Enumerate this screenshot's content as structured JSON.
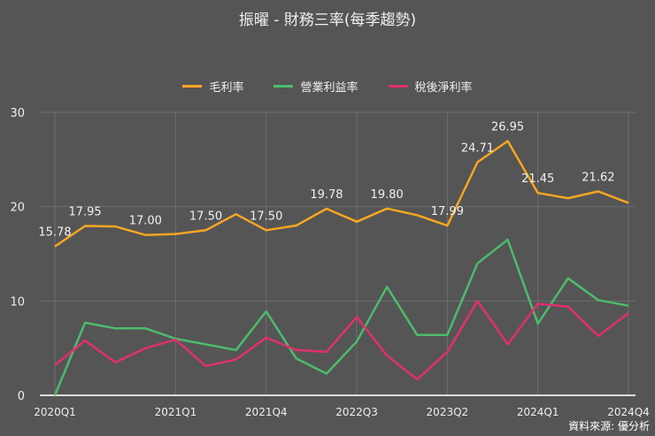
{
  "title": "振曜 - 財務三率(每季趨勢)",
  "source": "資料來源: 優分析",
  "chart_data": {
    "type": "line",
    "title": "振曜 - 財務三率(每季趨勢)",
    "x": [
      "2020Q1",
      "2020Q2",
      "2020Q3",
      "2020Q4",
      "2021Q1",
      "2021Q2",
      "2021Q3",
      "2021Q4",
      "2022Q1",
      "2022Q2",
      "2022Q3",
      "2022Q4",
      "2023Q1",
      "2023Q2",
      "2023Q3",
      "2023Q4",
      "2024Q1",
      "2024Q2",
      "2024Q3",
      "2024Q4"
    ],
    "xticks": [
      "2020Q1",
      "2021Q1",
      "2021Q4",
      "2022Q3",
      "2023Q2",
      "2024Q1",
      "2024Q4"
    ],
    "ylim": [
      0,
      30
    ],
    "yticks": [
      0,
      10,
      20,
      30
    ],
    "grid": true,
    "legend": "top",
    "series": [
      {
        "name": "毛利率",
        "color": "#f5a623",
        "values": [
          15.78,
          17.95,
          17.9,
          17.0,
          17.1,
          17.5,
          19.2,
          17.5,
          18.0,
          19.78,
          18.4,
          19.8,
          19.1,
          17.99,
          24.71,
          26.95,
          21.45,
          20.9,
          21.62,
          20.4
        ],
        "labels": [
          "15.78",
          "17.95",
          null,
          "17.00",
          null,
          "17.50",
          null,
          "17.50",
          null,
          "19.78",
          null,
          "19.80",
          null,
          "17.99",
          "24.71",
          "26.95",
          "21.45",
          null,
          "21.62",
          null
        ]
      },
      {
        "name": "營業利益率",
        "color": "#4cbb6c",
        "values": [
          0.0,
          7.7,
          7.1,
          7.1,
          6.0,
          5.4,
          4.8,
          8.9,
          3.9,
          2.3,
          5.7,
          11.5,
          6.4,
          6.4,
          14.0,
          16.5,
          7.6,
          12.4,
          10.1,
          9.5
        ]
      },
      {
        "name": "稅後淨利率",
        "color": "#e0306e",
        "values": [
          3.2,
          5.8,
          3.5,
          5.0,
          5.9,
          3.1,
          3.8,
          6.1,
          4.8,
          4.6,
          8.3,
          4.2,
          1.7,
          4.6,
          10.0,
          5.4,
          9.7,
          9.4,
          6.3,
          8.7
        ]
      }
    ]
  }
}
